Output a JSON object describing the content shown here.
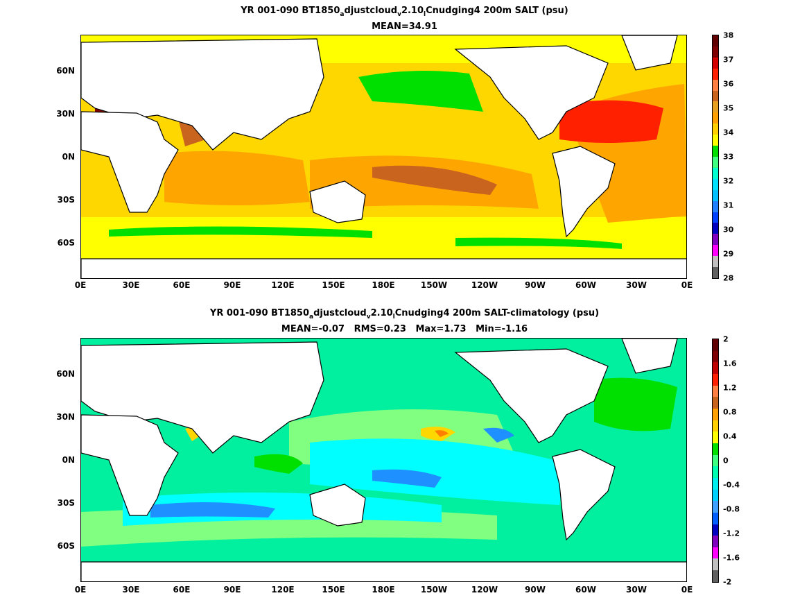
{
  "panels": [
    {
      "title_parts": [
        "YR 001-090 BT1850",
        "a",
        "djustcloud",
        "v",
        "2.10",
        "l",
        "Cnudging4 200m SALT (psu)"
      ],
      "subtitle": "MEAN=34.91",
      "lat_labels": [
        "60N",
        "30N",
        "0N",
        "30S",
        "60S"
      ],
      "lon_labels": [
        "0E",
        "30E",
        "60E",
        "90E",
        "120E",
        "150E",
        "180E",
        "150W",
        "120W",
        "90W",
        "60W",
        "30W",
        "0E"
      ],
      "colorbar": {
        "ticks": [
          "38",
          "37",
          "36",
          "35",
          "34",
          "33",
          "32",
          "31",
          "30",
          "29",
          "28"
        ],
        "colors": [
          "#600000",
          "#7f0000",
          "#d40000",
          "#ff2000",
          "#ff8040",
          "#c8641e",
          "#e8a020",
          "#ffa000",
          "#ffd000",
          "#ffff00",
          "#00e000",
          "#40ff80",
          "#00ffd0",
          "#00e0ff",
          "#00c0ff",
          "#2080ff",
          "#0040ff",
          "#0000c0",
          "#8000c0",
          "#ff00ff",
          "#c0c0c0",
          "#606060"
        ]
      }
    },
    {
      "title_parts": [
        "YR 001-090 BT1850",
        "a",
        "djustcloud",
        "v",
        "2.10",
        "l",
        "Cnudging4 200m SALT-climatology (psu)"
      ],
      "subtitle": "MEAN=-0.07   RMS=0.23   Max=1.73   Min=-1.16",
      "lat_labels": [
        "60N",
        "30N",
        "0N",
        "30S",
        "60S"
      ],
      "lon_labels": [
        "0E",
        "30E",
        "60E",
        "90E",
        "120E",
        "150E",
        "180E",
        "150W",
        "120W",
        "90W",
        "60W",
        "30W",
        "0E"
      ],
      "colorbar": {
        "ticks": [
          "2",
          "1.6",
          "1.2",
          "0.8",
          "0.4",
          "0",
          "-0.4",
          "-0.8",
          "-1.2",
          "-1.6",
          "-2"
        ],
        "colors": [
          "#600000",
          "#7f0000",
          "#c00000",
          "#ff2000",
          "#ff8040",
          "#c8641e",
          "#ffa000",
          "#ffd000",
          "#ffff00",
          "#00e000",
          "#40ff80",
          "#00ffb0",
          "#00f0f0",
          "#00d0ff",
          "#40a0ff",
          "#0060ff",
          "#0000c0",
          "#8000c0",
          "#ff00ff",
          "#c0c0c0",
          "#606060"
        ]
      }
    }
  ],
  "map_colors": {
    "land": "#ffffff",
    "coast": "#000000",
    "top": {
      "base": "#ffd700",
      "high_lat": "#ffff00",
      "fresh": "#00e000",
      "salty": "#ffa500",
      "saltier": "#c8641e",
      "max": "#ff2000",
      "med": "#7f0000"
    },
    "bottom": {
      "base": "#00f0a0",
      "light": "#80ff80",
      "cyan": "#00ffff",
      "blue": "#1e90ff",
      "green": "#00e000",
      "warm": "#ffd700",
      "hot": "#ff8000"
    }
  }
}
